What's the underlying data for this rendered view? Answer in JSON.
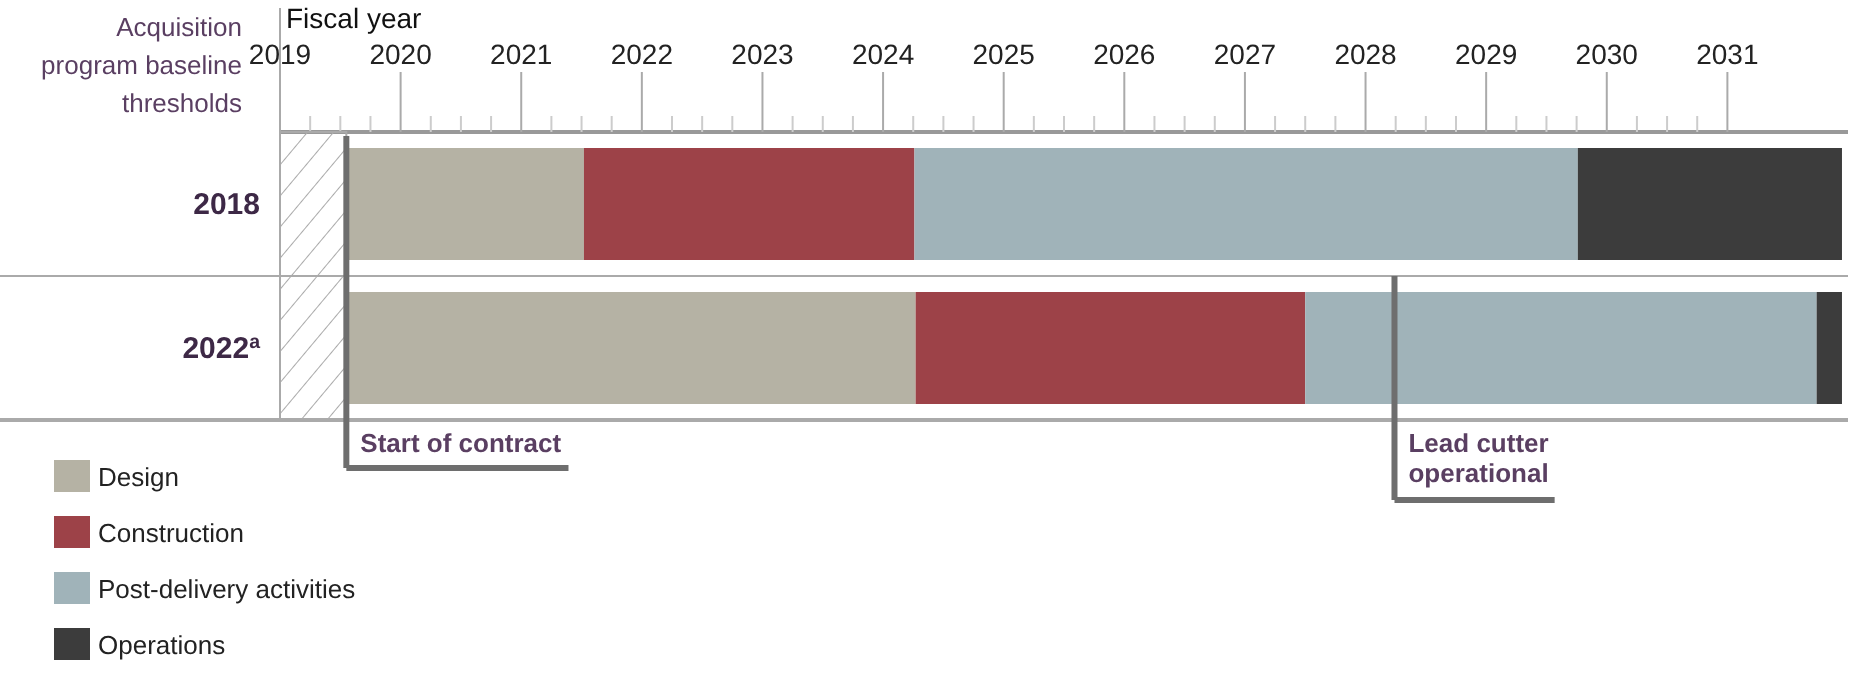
{
  "chart_data": {
    "type": "bar",
    "orientation": "horizontal",
    "xlabel": "Fiscal year",
    "ylabel": "Acquisition program baseline thresholds",
    "categories": [
      "2018",
      "2022$^{a}$"
    ],
    "series": [
      {
        "name": "Design",
        "color": "#b5b2a4",
        "base": [
          2019.55,
          2019.55
        ],
        "values": [
          1.97,
          4.72
        ]
      },
      {
        "name": "Construction",
        "color": "#9d4248",
        "base": [
          2021.52,
          2024.27
        ],
        "values": [
          2.74,
          3.23
        ]
      },
      {
        "name": "Post-delivery activities",
        "color": "#a0b3b9",
        "base": [
          2024.26,
          2027.5
        ],
        "values": [
          5.5,
          4.24
        ]
      },
      {
        "name": "Operations",
        "color": "#3c3c3c",
        "base": [
          2029.76,
          2031.74
        ],
        "values": [
          2.19,
          0.21
        ]
      }
    ],
    "xlim": [
      2019,
      2032
    ],
    "xticks": [
      2019,
      2020,
      2021,
      2022,
      2023,
      2024,
      2025,
      2026,
      2027,
      2028,
      2029,
      2030,
      2031
    ],
    "ref_lines": [
      {
        "axis": "x",
        "value": 2019.55,
        "label": "Start of contract",
        "color": "#6e6e6e"
      },
      {
        "axis": "x",
        "value": 2028.24,
        "label": "Lead cutter operational",
        "color": "#6e6e6e"
      }
    ],
    "legend": "bottom left"
  }
}
